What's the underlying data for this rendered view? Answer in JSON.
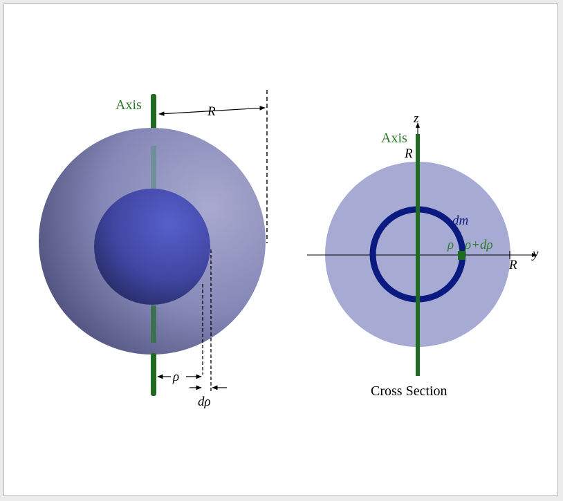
{
  "left_diagram": {
    "axis_label": "Axis",
    "radius_label": "R",
    "rho_label": "ρ",
    "drho_label": "dρ"
  },
  "right_diagram": {
    "axis_label": "Axis",
    "z_label": "z",
    "y_label": "y",
    "r_top_label": "R",
    "r_right_label": "R",
    "dm_label": "dm",
    "rho_label": "ρ",
    "rho_drho_label": "ρ+dρ",
    "caption": "Cross Section"
  },
  "colors": {
    "axis_green": "#1f6b1f",
    "label_green": "#2a7a2a",
    "ring_blue": "#0a1a80",
    "section_fill": "#a7aad2",
    "outer_sphere": "#8a8cba",
    "inner_sphere": "#4a50b0"
  }
}
